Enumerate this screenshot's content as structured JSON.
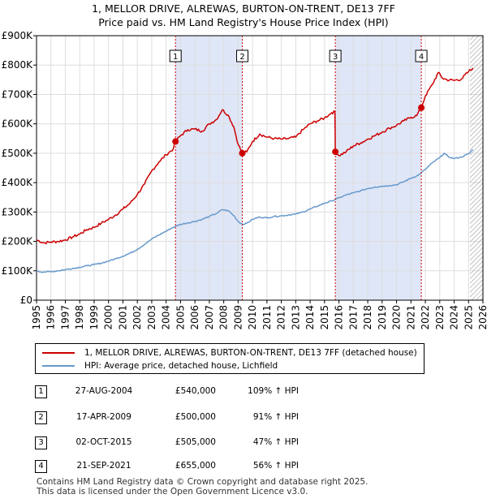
{
  "chart_data": {
    "type": "line",
    "title": "1, MELLOR DRIVE, ALREWAS, BURTON-ON-TRENT, DE13 7FF",
    "subtitle": "Price paid vs. HM Land Registry's House Price Index (HPI)",
    "xlabel": "",
    "ylabel": "",
    "xlim": [
      1995,
      2026
    ],
    "ylim": [
      0,
      900000
    ],
    "x_ticks": [
      "1995",
      "1996",
      "1997",
      "1998",
      "1999",
      "2000",
      "2001",
      "2002",
      "2003",
      "2004",
      "2005",
      "2006",
      "2007",
      "2008",
      "2009",
      "2010",
      "2011",
      "2012",
      "2013",
      "2014",
      "2015",
      "2016",
      "2017",
      "2018",
      "2019",
      "2020",
      "2021",
      "2022",
      "2023",
      "2024",
      "2025",
      "2026"
    ],
    "y_ticks": [
      {
        "value": 0,
        "label": "£0"
      },
      {
        "value": 100000,
        "label": "£100K"
      },
      {
        "value": 200000,
        "label": "£200K"
      },
      {
        "value": 300000,
        "label": "£300K"
      },
      {
        "value": 400000,
        "label": "£400K"
      },
      {
        "value": 500000,
        "label": "£500K"
      },
      {
        "value": 600000,
        "label": "£600K"
      },
      {
        "value": 700000,
        "label": "£700K"
      },
      {
        "value": 800000,
        "label": "£800K"
      },
      {
        "value": 900000,
        "label": "£900K"
      }
    ],
    "grid": true,
    "series": [
      {
        "name": "1, MELLOR DRIVE, ALREWAS, BURTON-ON-TRENT, DE13 7FF (detached house)",
        "color": "#cc0000",
        "points": [
          [
            1995.0,
            205000
          ],
          [
            1995.5,
            195000
          ],
          [
            1996.0,
            198000
          ],
          [
            1996.5,
            200000
          ],
          [
            1997.0,
            205000
          ],
          [
            1997.5,
            215000
          ],
          [
            1998.0,
            225000
          ],
          [
            1998.5,
            240000
          ],
          [
            1999.0,
            248000
          ],
          [
            1999.5,
            262000
          ],
          [
            2000.0,
            275000
          ],
          [
            2000.5,
            290000
          ],
          [
            2001.0,
            310000
          ],
          [
            2001.5,
            330000
          ],
          [
            2002.0,
            360000
          ],
          [
            2002.5,
            395000
          ],
          [
            2003.0,
            440000
          ],
          [
            2003.5,
            470000
          ],
          [
            2004.0,
            495000
          ],
          [
            2004.5,
            515000
          ],
          [
            2004.65,
            540000
          ],
          [
            2005.0,
            560000
          ],
          [
            2005.5,
            580000
          ],
          [
            2006.0,
            582000
          ],
          [
            2006.5,
            575000
          ],
          [
            2007.0,
            600000
          ],
          [
            2007.5,
            615000
          ],
          [
            2007.9,
            648000
          ],
          [
            2008.3,
            630000
          ],
          [
            2008.7,
            590000
          ],
          [
            2009.0,
            530000
          ],
          [
            2009.29,
            500000
          ],
          [
            2009.6,
            505000
          ],
          [
            2010.0,
            540000
          ],
          [
            2010.5,
            565000
          ],
          [
            2011.0,
            555000
          ],
          [
            2011.5,
            550000
          ],
          [
            2012.0,
            548000
          ],
          [
            2012.5,
            550000
          ],
          [
            2013.0,
            555000
          ],
          [
            2013.5,
            580000
          ],
          [
            2014.0,
            600000
          ],
          [
            2014.5,
            610000
          ],
          [
            2015.0,
            620000
          ],
          [
            2015.5,
            638000
          ],
          [
            2015.72,
            640000
          ],
          [
            2015.75,
            505000
          ],
          [
            2016.0,
            492000
          ],
          [
            2016.5,
            505000
          ],
          [
            2017.0,
            525000
          ],
          [
            2017.5,
            535000
          ],
          [
            2018.0,
            548000
          ],
          [
            2018.5,
            560000
          ],
          [
            2019.0,
            572000
          ],
          [
            2019.5,
            585000
          ],
          [
            2020.0,
            595000
          ],
          [
            2020.5,
            610000
          ],
          [
            2021.0,
            622000
          ],
          [
            2021.4,
            628000
          ],
          [
            2021.72,
            655000
          ],
          [
            2022.0,
            695000
          ],
          [
            2022.5,
            735000
          ],
          [
            2022.9,
            775000
          ],
          [
            2023.2,
            755000
          ],
          [
            2023.5,
            750000
          ],
          [
            2024.0,
            748000
          ],
          [
            2024.5,
            752000
          ],
          [
            2025.0,
            778000
          ],
          [
            2025.3,
            790000
          ]
        ]
      },
      {
        "name": "HPI: Average price, detached house, Lichfield",
        "color": "#6699cc",
        "points": [
          [
            1995.0,
            98000
          ],
          [
            1995.5,
            96000
          ],
          [
            1996.0,
            97000
          ],
          [
            1996.5,
            100000
          ],
          [
            1997.0,
            104000
          ],
          [
            1997.5,
            108000
          ],
          [
            1998.0,
            112000
          ],
          [
            1998.5,
            117000
          ],
          [
            1999.0,
            121000
          ],
          [
            1999.5,
            126000
          ],
          [
            2000.0,
            133000
          ],
          [
            2000.5,
            141000
          ],
          [
            2001.0,
            150000
          ],
          [
            2001.5,
            160000
          ],
          [
            2002.0,
            173000
          ],
          [
            2002.5,
            190000
          ],
          [
            2003.0,
            208000
          ],
          [
            2003.5,
            222000
          ],
          [
            2004.0,
            235000
          ],
          [
            2004.5,
            248000
          ],
          [
            2005.0,
            258000
          ],
          [
            2005.5,
            263000
          ],
          [
            2006.0,
            268000
          ],
          [
            2006.5,
            275000
          ],
          [
            2007.0,
            285000
          ],
          [
            2007.5,
            295000
          ],
          [
            2007.9,
            308000
          ],
          [
            2008.3,
            305000
          ],
          [
            2008.7,
            288000
          ],
          [
            2009.0,
            268000
          ],
          [
            2009.3,
            258000
          ],
          [
            2009.6,
            262000
          ],
          [
            2010.0,
            275000
          ],
          [
            2010.5,
            283000
          ],
          [
            2011.0,
            280000
          ],
          [
            2011.5,
            285000
          ],
          [
            2012.0,
            287000
          ],
          [
            2012.5,
            290000
          ],
          [
            2013.0,
            293000
          ],
          [
            2013.5,
            300000
          ],
          [
            2014.0,
            310000
          ],
          [
            2014.5,
            320000
          ],
          [
            2015.0,
            330000
          ],
          [
            2015.5,
            338000
          ],
          [
            2016.0,
            348000
          ],
          [
            2016.5,
            358000
          ],
          [
            2017.0,
            365000
          ],
          [
            2017.5,
            372000
          ],
          [
            2018.0,
            380000
          ],
          [
            2018.5,
            385000
          ],
          [
            2019.0,
            388000
          ],
          [
            2019.5,
            390000
          ],
          [
            2020.0,
            393000
          ],
          [
            2020.5,
            403000
          ],
          [
            2021.0,
            415000
          ],
          [
            2021.5,
            425000
          ],
          [
            2022.0,
            445000
          ],
          [
            2022.5,
            468000
          ],
          [
            2023.0,
            485000
          ],
          [
            2023.3,
            500000
          ],
          [
            2023.6,
            488000
          ],
          [
            2024.0,
            482000
          ],
          [
            2024.5,
            487000
          ],
          [
            2025.0,
            498000
          ],
          [
            2025.3,
            512000
          ]
        ]
      }
    ],
    "sales": [
      {
        "id": "1",
        "x": 2004.65,
        "y": 540000,
        "date": "27-AUG-2004",
        "price": "£540,000",
        "hpi": "109% ↑ HPI"
      },
      {
        "id": "2",
        "x": 2009.29,
        "y": 500000,
        "date": "17-APR-2009",
        "price": "£500,000",
        "hpi": "91% ↑ HPI"
      },
      {
        "id": "3",
        "x": 2015.75,
        "y": 505000,
        "date": "02-OCT-2015",
        "price": "£505,000",
        "hpi": "47% ↑ HPI"
      },
      {
        "id": "4",
        "x": 2021.72,
        "y": 655000,
        "date": "21-SEP-2021",
        "price": "£655,000",
        "hpi": "56% ↑ HPI"
      }
    ],
    "shaded_periods": [
      [
        2004.65,
        2009.29
      ],
      [
        2015.75,
        2021.72
      ]
    ],
    "forecast_start": 2025.1,
    "legend": {
      "position": "below",
      "entries": [
        "1, MELLOR DRIVE, ALREWAS, BURTON-ON-TRENT, DE13 7FF (detached house)",
        "HPI: Average price, detached house, Lichfield"
      ]
    }
  },
  "footer": {
    "line1": "Contains HM Land Registry data © Crown copyright and database right 2025.",
    "line2": "This data is licensed under the Open Government Licence v3.0."
  },
  "colors": {
    "price_line": "#cc0000",
    "hpi_line": "#6699cc",
    "shade": "#dfe6f7",
    "grid": "#dddddd"
  }
}
